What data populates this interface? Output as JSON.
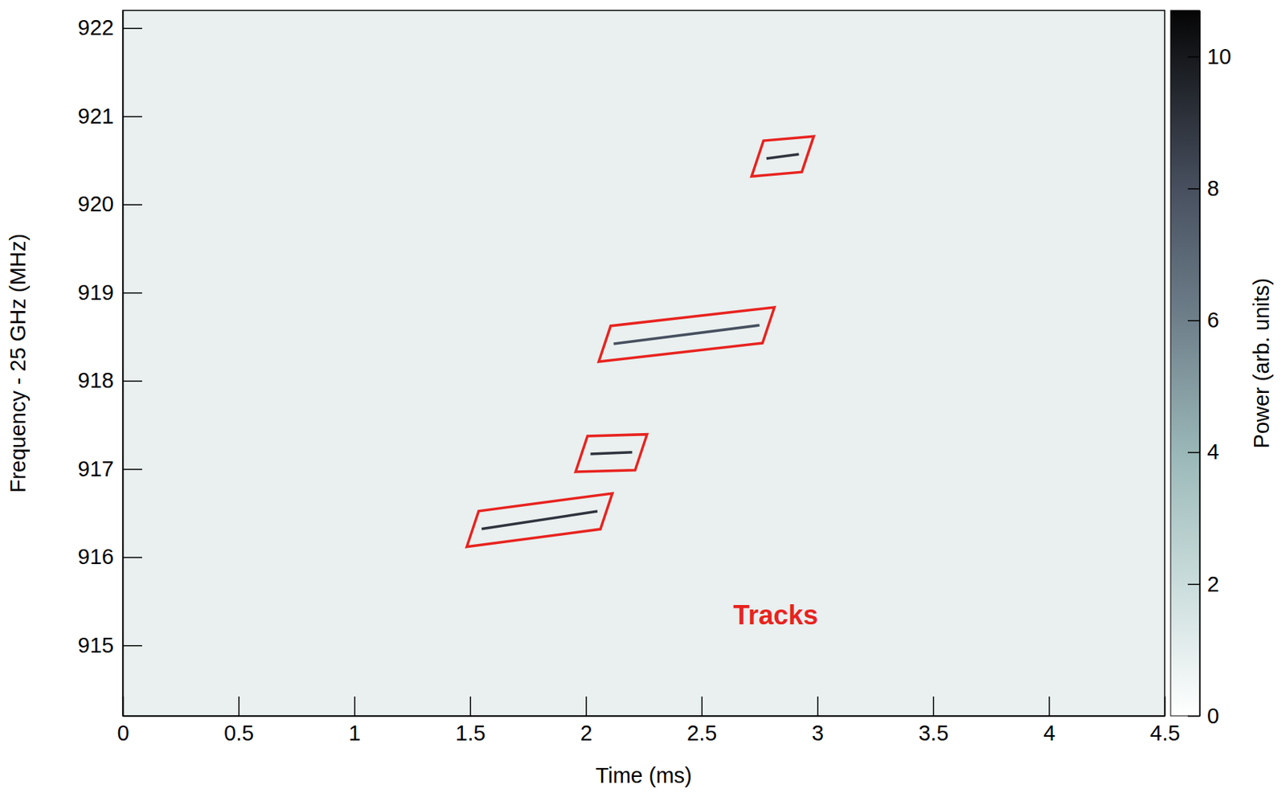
{
  "chart_data": {
    "type": "heatmap",
    "x_label": "Time (ms)",
    "y_label": "Frequency - 25 GHz (MHz)",
    "xlim": [
      0,
      4.5
    ],
    "xticks": [
      0,
      0.5,
      1,
      1.5,
      2,
      2.5,
      3,
      3.5,
      4,
      4.5
    ],
    "ylim": [
      914.2,
      922.2
    ],
    "yticks": [
      915,
      916,
      917,
      918,
      919,
      920,
      921,
      922
    ],
    "series": [
      {
        "x": [
          1.55,
          2.05
        ],
        "values": [
          916.32,
          916.52
        ],
        "power": 9
      },
      {
        "x": [
          2.02,
          2.2
        ],
        "values": [
          917.17,
          917.19
        ],
        "power": 9
      },
      {
        "x": [
          2.12,
          2.75
        ],
        "values": [
          918.42,
          918.63
        ],
        "power": 8
      },
      {
        "x": [
          2.78,
          2.92
        ],
        "values": [
          920.52,
          920.57
        ],
        "power": 9
      }
    ],
    "colorbar": {
      "label": "Power (arb. units)",
      "range": [
        0,
        10.7
      ],
      "ticks": [
        0,
        2,
        4,
        6,
        8,
        10
      ]
    },
    "annotations": [
      {
        "text": "Tracks",
        "x": 2.82,
        "y": 915.32,
        "color": "#e8231f"
      }
    ]
  }
}
